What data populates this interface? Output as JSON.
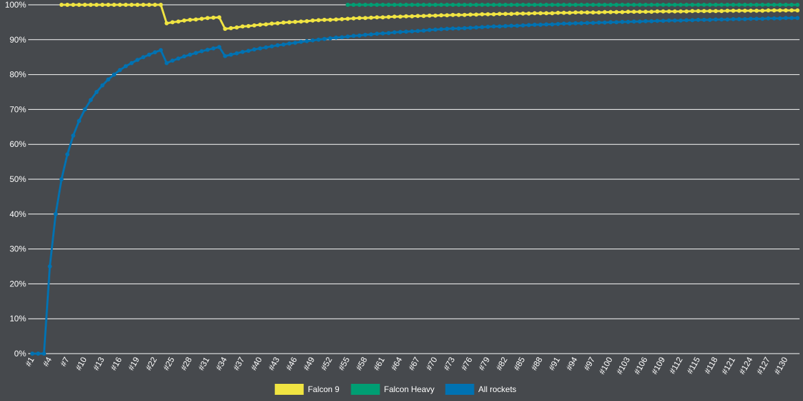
{
  "chart_data": {
    "type": "line",
    "categories": [
      "#1",
      null,
      null,
      "#4",
      null,
      null,
      "#7",
      null,
      null,
      "#10",
      null,
      null,
      "#13",
      null,
      null,
      "#16",
      null,
      null,
      "#19",
      null,
      null,
      "#22",
      null,
      null,
      "#25",
      null,
      null,
      "#28",
      null,
      null,
      "#31",
      null,
      null,
      "#34",
      null,
      null,
      "#37",
      null,
      null,
      "#40",
      null,
      null,
      "#43",
      null,
      null,
      "#46",
      null,
      null,
      "#49",
      null,
      null,
      "#52",
      null,
      null,
      "#55",
      null,
      null,
      "#58",
      null,
      null,
      "#61",
      null,
      null,
      "#64",
      null,
      null,
      "#67",
      null,
      null,
      "#70",
      null,
      null,
      "#73",
      null,
      null,
      "#76",
      null,
      null,
      "#79",
      null,
      null,
      "#82",
      null,
      null,
      "#85",
      null,
      null,
      "#88",
      null,
      null,
      "#91",
      null,
      null,
      "#94",
      null,
      null,
      "#97",
      null,
      null,
      "#100",
      null,
      null,
      "#103",
      null,
      null,
      "#106",
      null,
      null,
      "#109",
      null,
      null,
      "#112",
      null,
      null,
      "#115",
      null,
      null,
      "#118",
      null,
      null,
      "#121",
      null,
      null,
      "#124",
      null,
      null,
      "#127",
      null,
      null,
      "#130",
      null,
      null
    ],
    "series": [
      {
        "name": "Falcon 9",
        "color": "#f0e442",
        "values": [
          null,
          null,
          null,
          null,
          null,
          100,
          100,
          100,
          100,
          100,
          100,
          100,
          100,
          100,
          100,
          100,
          100,
          100,
          100,
          100,
          100,
          100,
          100,
          94.7,
          95,
          95.2,
          95.5,
          95.7,
          95.8,
          96,
          96.2,
          96.3,
          96.4,
          93.1,
          93.3,
          93.5,
          93.8,
          93.9,
          94.1,
          94.3,
          94.4,
          94.6,
          94.7,
          94.9,
          95,
          95.1,
          95.2,
          95.3,
          95.5,
          95.6,
          95.7,
          95.7,
          95.8,
          95.9,
          96,
          96.1,
          96.2,
          96.2,
          96.3,
          96.4,
          96.4,
          96.5,
          96.6,
          96.6,
          96.7,
          96.7,
          96.8,
          96.8,
          96.9,
          96.9,
          97,
          97,
          97.1,
          97.1,
          97.1,
          97.2,
          97.2,
          97.3,
          97.3,
          97.3,
          97.4,
          97.4,
          97.4,
          97.5,
          97.5,
          97.5,
          97.6,
          97.6,
          97.6,
          97.6,
          97.7,
          97.7,
          97.7,
          97.8,
          97.8,
          97.8,
          97.8,
          97.8,
          97.9,
          97.9,
          97.9,
          97.9,
          98,
          98,
          98,
          98,
          98,
          98.1,
          98.1,
          98.1,
          98.1,
          98.1,
          98.1,
          98.2,
          98.2,
          98.2,
          98.2,
          98.2,
          98.2,
          98.3,
          98.3,
          98.3,
          98.3,
          98.3,
          98.3,
          98.3,
          98.4,
          98.4,
          98.4,
          98.4,
          98.4,
          98.4
        ]
      },
      {
        "name": "Falcon Heavy",
        "color": "#009e73",
        "values": [
          null,
          null,
          null,
          null,
          null,
          null,
          null,
          null,
          null,
          null,
          null,
          null,
          null,
          null,
          null,
          null,
          null,
          null,
          null,
          null,
          null,
          null,
          null,
          null,
          null,
          null,
          null,
          null,
          null,
          null,
          null,
          null,
          null,
          null,
          null,
          null,
          null,
          null,
          null,
          null,
          null,
          null,
          null,
          null,
          null,
          null,
          null,
          null,
          null,
          null,
          null,
          null,
          null,
          null,
          100,
          100,
          100,
          100,
          100,
          100,
          100,
          100,
          100,
          100,
          100,
          100,
          100,
          100,
          100,
          100,
          100,
          100,
          100,
          100,
          100,
          100,
          100,
          100,
          100,
          100,
          100,
          100,
          100,
          100,
          100,
          100,
          100,
          100,
          100,
          100,
          100,
          100,
          100,
          100,
          100,
          100,
          100,
          100,
          100,
          100,
          100,
          100,
          100,
          100,
          100,
          100,
          100,
          100,
          100,
          100,
          100,
          100,
          100,
          100,
          100,
          100,
          100,
          100,
          100,
          100,
          100,
          100,
          100,
          100,
          100,
          100,
          100,
          100,
          100,
          100,
          100,
          100
        ]
      },
      {
        "name": "All rockets",
        "color": "#0072b2",
        "values": [
          0,
          0,
          0,
          25,
          40,
          50,
          57.1,
          62.5,
          66.7,
          70,
          72.7,
          75,
          76.9,
          78.6,
          80,
          81.3,
          82.4,
          83.3,
          84.2,
          85,
          85.7,
          86.4,
          87,
          83.3,
          84,
          84.6,
          85.2,
          85.7,
          86.2,
          86.7,
          87.1,
          87.5,
          87.9,
          85.3,
          85.7,
          86.1,
          86.5,
          86.8,
          87.2,
          87.5,
          87.8,
          88.1,
          88.4,
          88.6,
          88.9,
          89.1,
          89.4,
          89.6,
          89.8,
          90,
          90.2,
          90.4,
          90.6,
          90.7,
          90.9,
          91.1,
          91.2,
          91.4,
          91.5,
          91.7,
          91.8,
          91.9,
          92.1,
          92.2,
          92.3,
          92.4,
          92.5,
          92.6,
          92.8,
          92.9,
          93,
          93.1,
          93.2,
          93.2,
          93.3,
          93.4,
          93.5,
          93.6,
          93.7,
          93.8,
          93.8,
          93.9,
          94,
          94,
          94.1,
          94.2,
          94.3,
          94.3,
          94.4,
          94.4,
          94.5,
          94.6,
          94.6,
          94.7,
          94.7,
          94.8,
          94.8,
          94.9,
          94.9,
          95,
          95,
          95.1,
          95.1,
          95.2,
          95.2,
          95.3,
          95.3,
          95.4,
          95.4,
          95.5,
          95.5,
          95.5,
          95.6,
          95.6,
          95.7,
          95.7,
          95.7,
          95.8,
          95.8,
          95.8,
          95.9,
          95.9,
          95.9,
          96,
          96,
          96,
          96.1,
          96.1,
          96.1,
          96.2,
          96.2,
          96.2
        ]
      }
    ],
    "ylim": [
      0,
      100
    ],
    "yticks": [
      {
        "value": 0,
        "label": "0%"
      },
      {
        "value": 10,
        "label": "10%"
      },
      {
        "value": 20,
        "label": "20%"
      },
      {
        "value": 30,
        "label": "30%"
      },
      {
        "value": 40,
        "label": "40%"
      },
      {
        "value": 50,
        "label": "50%"
      },
      {
        "value": 60,
        "label": "60%"
      },
      {
        "value": 70,
        "label": "70%"
      },
      {
        "value": 80,
        "label": "80%"
      },
      {
        "value": 90,
        "label": "90%"
      },
      {
        "value": 100,
        "label": "100%"
      }
    ],
    "grid": true,
    "legend": "bottom"
  }
}
